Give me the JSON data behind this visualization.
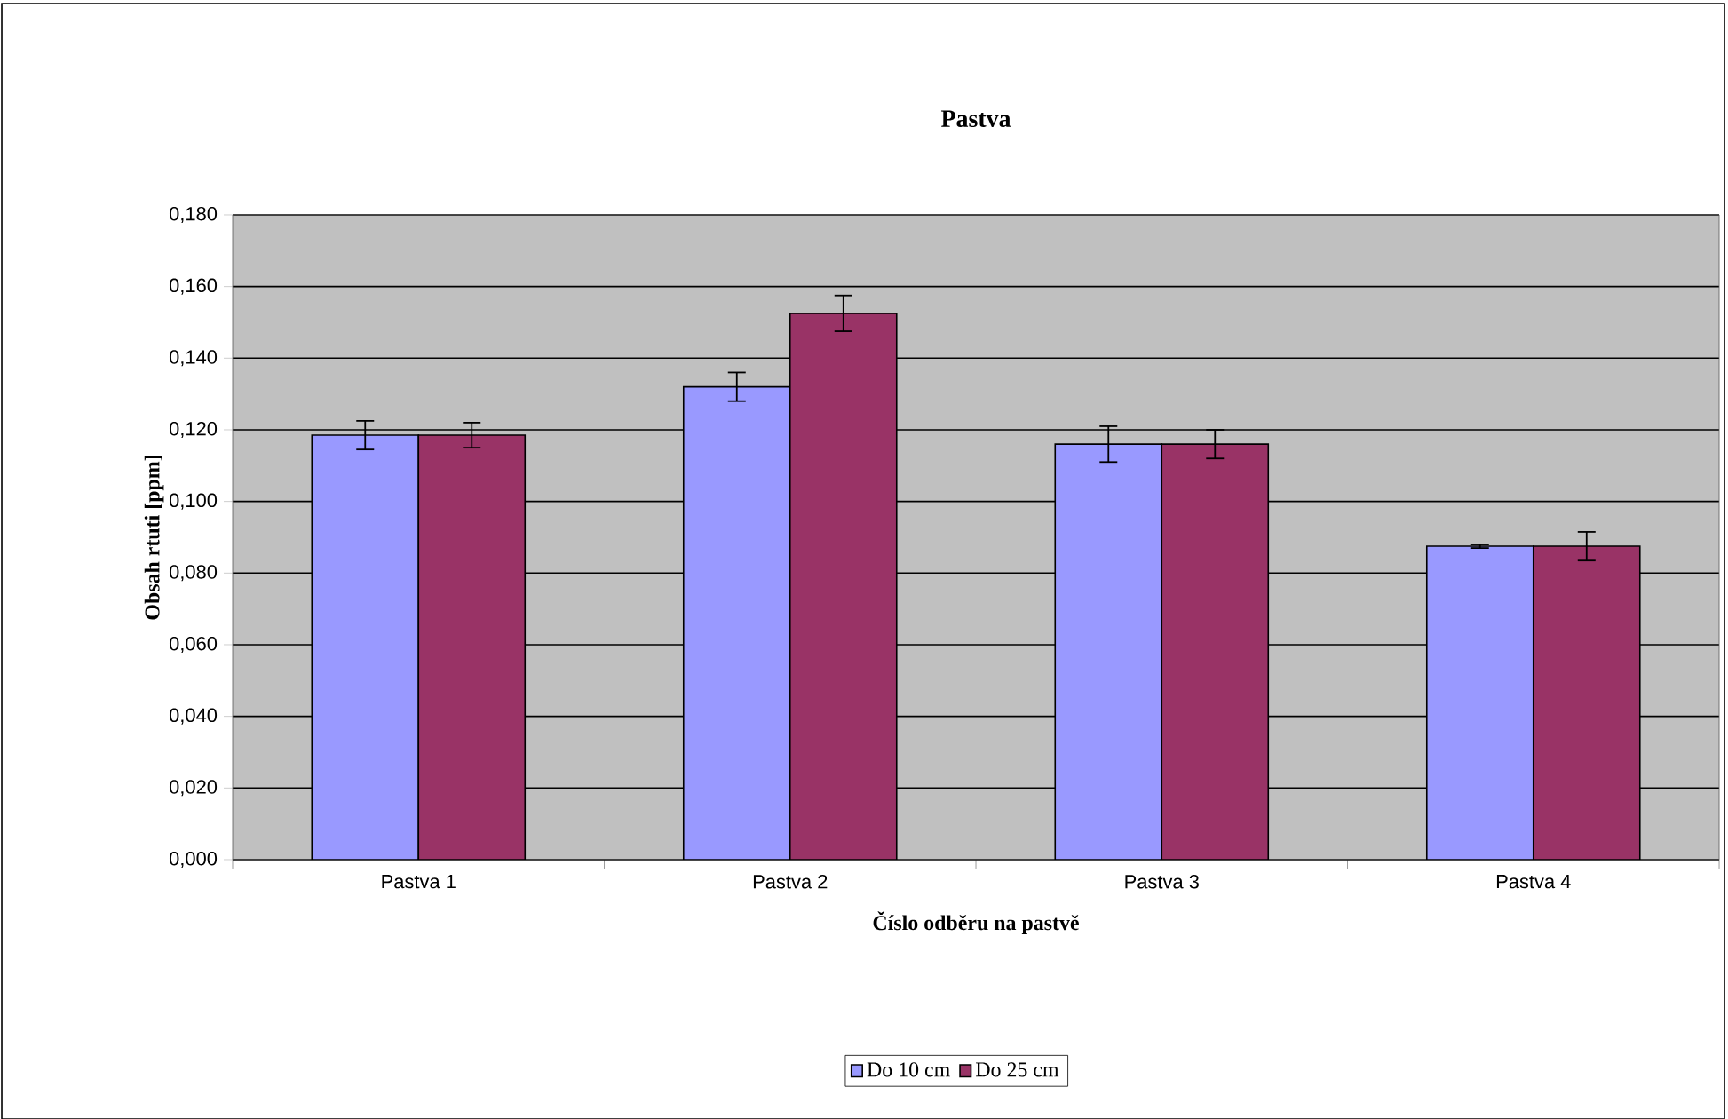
{
  "chart_data": {
    "type": "bar",
    "title": "Pastva",
    "xlabel": "Číslo odběru na pastvě",
    "ylabel": "Obsah rtuti [ppm]",
    "categories": [
      "Pastva 1",
      "Pastva 2",
      "Pastva 3",
      "Pastva 4"
    ],
    "series": [
      {
        "name": "Do 10 cm",
        "color": "#9999ff",
        "values": [
          0.1185,
          0.132,
          0.116,
          0.0875
        ],
        "errors": [
          0.004,
          0.004,
          0.005,
          0.0005
        ]
      },
      {
        "name": "Do 25 cm",
        "color": "#993366",
        "values": [
          0.1185,
          0.1525,
          0.116,
          0.0875
        ],
        "errors": [
          0.0035,
          0.005,
          0.004,
          0.004
        ]
      }
    ],
    "ylim": [
      0,
      0.18
    ],
    "yticks": [
      {
        "value": 0,
        "label": "0,000"
      },
      {
        "value": 0.02,
        "label": "0,020"
      },
      {
        "value": 0.04,
        "label": "0,040"
      },
      {
        "value": 0.06,
        "label": "0,060"
      },
      {
        "value": 0.08,
        "label": "0,080"
      },
      {
        "value": 0.1,
        "label": "0,100"
      },
      {
        "value": 0.12,
        "label": "0,120"
      },
      {
        "value": 0.14,
        "label": "0,140"
      },
      {
        "value": 0.16,
        "label": "0,160"
      },
      {
        "value": 0.18,
        "label": "0,180"
      }
    ],
    "grid": "y",
    "legend": "bottom"
  }
}
